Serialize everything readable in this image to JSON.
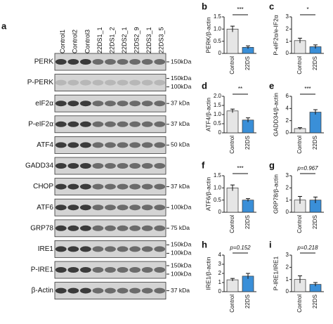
{
  "blot": {
    "label": "a",
    "lanes": [
      "Control1",
      "Control2",
      "Control3",
      "22DS1_1",
      "22DS1_2",
      "22DS2_1",
      "22DS2_9",
      "22DS3_1",
      "22DS3_5"
    ],
    "rows": [
      {
        "name": "PERK",
        "markers": [
          "150kDa"
        ]
      },
      {
        "name": "P-PERK",
        "markers": [
          "150kDa",
          "100kDa"
        ]
      },
      {
        "name": "eIF2α",
        "markers": [
          "37 kDa"
        ]
      },
      {
        "name": "P-eIF2α",
        "markers": [
          "37 kDa"
        ]
      },
      {
        "name": "ATF4",
        "markers": [
          "50 kDa"
        ]
      },
      {
        "name": "GADD34",
        "markers": []
      },
      {
        "name": "CHOP",
        "markers": [
          "37 kDa"
        ]
      },
      {
        "name": "ATF6",
        "markers": [
          "100kDa"
        ]
      },
      {
        "name": "GRP78",
        "markers": [
          "75 kDa"
        ]
      },
      {
        "name": "IRE1",
        "markers": [
          "150kDa",
          "100kDa"
        ]
      },
      {
        "name": "P-IRE1",
        "markers": [
          "150kDa",
          "100kDa"
        ]
      },
      {
        "name": "β-Actin",
        "markers": [
          "37 kDa"
        ]
      }
    ]
  },
  "chart_data": [
    {
      "type": "bar",
      "label": "b",
      "ylabel": "PERK/β-actin",
      "categories": [
        "Control",
        "22DS"
      ],
      "values": [
        1.0,
        0.25
      ],
      "errors": [
        0.12,
        0.06
      ],
      "colors": [
        "#e6e6e6",
        "#3a8fd8"
      ],
      "ylim": [
        0,
        1.5
      ],
      "yticks": [
        0,
        0.5,
        {
          "value": 1,
          "label": "1.0"
        },
        1.5
      ],
      "annotation": "***"
    },
    {
      "type": "bar",
      "label": "c",
      "ylabel": "P-eIF2α/e-IF2α",
      "categories": [
        "Control",
        "22DS"
      ],
      "values": [
        1.05,
        0.55
      ],
      "errors": [
        0.2,
        0.15
      ],
      "colors": [
        "#e6e6e6",
        "#3a8fd8"
      ],
      "ylim": [
        0,
        3
      ],
      "yticks": [
        0,
        1,
        2,
        3
      ],
      "annotation": "*"
    },
    {
      "type": "bar",
      "label": "d",
      "ylabel": "ATF4/β-actin",
      "categories": [
        "Control",
        "22DS"
      ],
      "values": [
        1.2,
        0.7
      ],
      "errors": [
        0.1,
        0.12
      ],
      "colors": [
        "#e6e6e6",
        "#3a8fd8"
      ],
      "ylim": [
        0,
        2
      ],
      "yticks": [
        0,
        0.5,
        {
          "value": 1,
          "label": "1.0"
        },
        1.5,
        {
          "value": 2,
          "label": "2.0"
        }
      ],
      "annotation": "**"
    },
    {
      "type": "bar",
      "label": "e",
      "ylabel": "GADD34/β-actin",
      "categories": [
        "Control",
        "22DS"
      ],
      "values": [
        0.7,
        3.4
      ],
      "errors": [
        0.15,
        0.4
      ],
      "colors": [
        "#e6e6e6",
        "#3a8fd8"
      ],
      "ylim": [
        0,
        6
      ],
      "yticks": [
        0,
        2,
        4,
        6
      ],
      "annotation": "***"
    },
    {
      "type": "bar",
      "label": "f",
      "ylabel": "ATF6/β-actin",
      "categories": [
        "Control",
        "22DS"
      ],
      "values": [
        1.0,
        0.5
      ],
      "errors": [
        0.12,
        0.06
      ],
      "colors": [
        "#e6e6e6",
        "#3a8fd8"
      ],
      "ylim": [
        0,
        1.5
      ],
      "yticks": [
        0,
        0.5,
        {
          "value": 1,
          "label": "1.0"
        },
        1.5
      ],
      "annotation": "***"
    },
    {
      "type": "bar",
      "label": "g",
      "ylabel": "GRP78/β-actin",
      "categories": [
        "Control",
        "22DS"
      ],
      "values": [
        1.0,
        1.0
      ],
      "errors": [
        0.3,
        0.25
      ],
      "colors": [
        "#e6e6e6",
        "#3a8fd8"
      ],
      "ylim": [
        0,
        3
      ],
      "yticks": [
        0,
        1,
        2,
        3
      ],
      "annotation": "p=0.967"
    },
    {
      "type": "bar",
      "label": "h",
      "ylabel": "IRE1/β-actin",
      "categories": [
        "Control",
        "22DS"
      ],
      "values": [
        1.3,
        1.7
      ],
      "errors": [
        0.15,
        0.3
      ],
      "colors": [
        "#e6e6e6",
        "#3a8fd8"
      ],
      "ylim": [
        0,
        4
      ],
      "yticks": [
        0,
        1,
        2,
        3,
        4
      ],
      "annotation": "p=0.152"
    },
    {
      "type": "bar",
      "label": "i",
      "ylabel": "P-IRE1/IRE1",
      "categories": [
        "Control",
        "22DS"
      ],
      "values": [
        1.0,
        0.6
      ],
      "errors": [
        0.3,
        0.15
      ],
      "colors": [
        "#e6e6e6",
        "#3a8fd8"
      ],
      "ylim": [
        0,
        3
      ],
      "yticks": [
        0,
        1,
        2,
        3
      ],
      "annotation": "p=0.218"
    }
  ]
}
